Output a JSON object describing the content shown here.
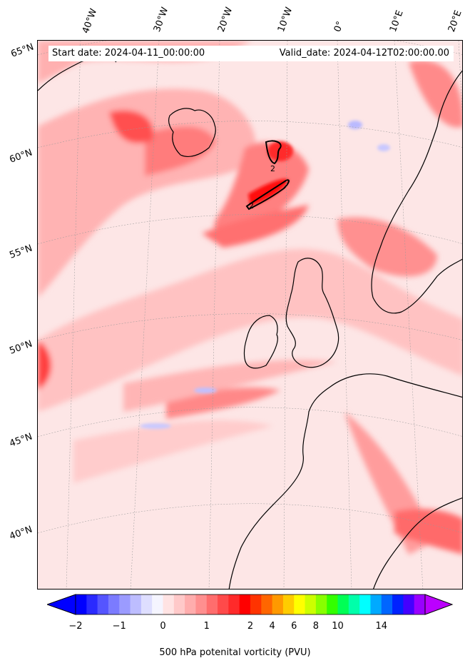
{
  "info": {
    "start_label": "Start date: 2024-04-11_00:00:00",
    "valid_label": "Valid_date: 2024-04-12T02:00:00.00"
  },
  "map": {
    "projection": "conic",
    "field": "500 hPa potential vorticity",
    "contour_line_label": "2",
    "lon_labels": [
      "40°W",
      "30°W",
      "20°W",
      "10°W",
      "0°",
      "10°E",
      "20°E"
    ],
    "lat_labels": [
      "65°N",
      "60°N",
      "55°N",
      "50°N",
      "45°N",
      "40°N"
    ]
  },
  "colorbar": {
    "label": "500 hPa potenital vorticity (PVU)",
    "tick_labels": [
      "−2",
      "−1",
      "0",
      "1",
      "2",
      "4",
      "6",
      "8",
      "10",
      "14"
    ],
    "colors": [
      "#0000ff",
      "#2a2aff",
      "#5555ff",
      "#7b7bff",
      "#9b9bff",
      "#bdbdff",
      "#dedeff",
      "#f5f5ff",
      "#ffe3e3",
      "#ffc9c9",
      "#ffadad",
      "#ff8f8f",
      "#ff6d6d",
      "#ff4a4a",
      "#ff2a2a",
      "#ff0000",
      "#ff3300",
      "#ff6600",
      "#ff9900",
      "#ffcc00",
      "#ffff00",
      "#ccff00",
      "#88ff00",
      "#33ff00",
      "#00ff55",
      "#00ffaa",
      "#00ffff",
      "#00aaff",
      "#0066ff",
      "#0022ff",
      "#4400ff",
      "#9900ff"
    ],
    "under_color": "#0000ff",
    "over_color": "#bb00ff"
  }
}
